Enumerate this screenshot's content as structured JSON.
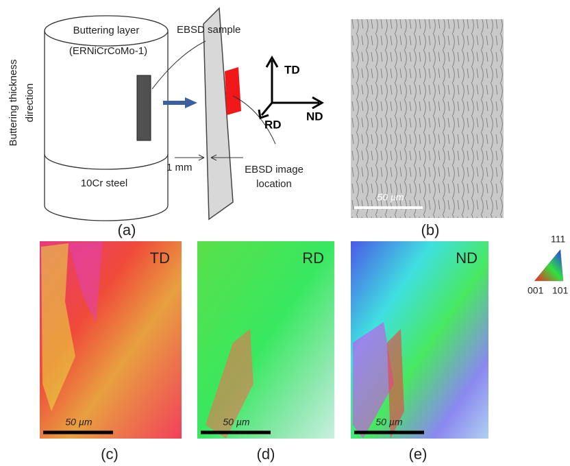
{
  "panel_a": {
    "layer_label": [
      "Buttering layer",
      "(ERNiCrCoMo-1)"
    ],
    "direction_label": [
      "Buttering thickness",
      "direction"
    ],
    "steel_label": "10Cr steel",
    "sample_label": "EBSD sample",
    "thickness_label": "1 mm",
    "location_label": [
      "EBSD image",
      "location"
    ],
    "axes": {
      "td": "TD",
      "nd": "ND",
      "rd": "RD"
    },
    "caption": "(a)"
  },
  "panel_b": {
    "scale_bar": "50 µm",
    "caption": "(b)"
  },
  "maps": [
    {
      "direction": "TD",
      "scale_bar": "50 µm",
      "caption": "(c)"
    },
    {
      "direction": "RD",
      "scale_bar": "50 µm",
      "caption": "(d)"
    },
    {
      "direction": "ND",
      "scale_bar": "50 µm",
      "caption": "(e)"
    }
  ],
  "ipf_legend": {
    "top": "111",
    "left": "001",
    "right": "101"
  }
}
